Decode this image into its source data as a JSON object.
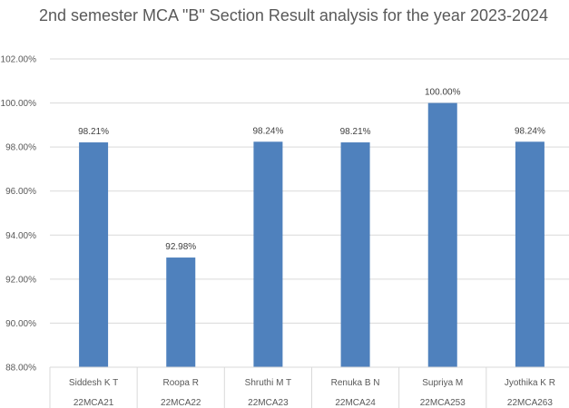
{
  "chart_data": {
    "type": "bar",
    "title": "2nd semester MCA \"B\" Section Result analysis for the year 2023-2024",
    "categories": [
      {
        "name": "Siddesh K T",
        "id": "22MCA21"
      },
      {
        "name": "Roopa R",
        "id": "22MCA22"
      },
      {
        "name": "Shruthi M T",
        "id": "22MCA23"
      },
      {
        "name": "Renuka B N",
        "id": "22MCA24"
      },
      {
        "name": "Supriya M",
        "id": "22MCA253"
      },
      {
        "name": "Jyothika K R",
        "id": "22MCA263"
      }
    ],
    "values": [
      98.21,
      92.98,
      98.24,
      98.21,
      100.0,
      98.24
    ],
    "data_labels": [
      "98.21%",
      "92.98%",
      "98.24%",
      "98.21%",
      "100.00%",
      "98.24%"
    ],
    "yticks": [
      "88.00%",
      "90.00%",
      "92.00%",
      "94.00%",
      "96.00%",
      "98.00%",
      "100.00%",
      "102.00%"
    ],
    "ylim": [
      88,
      102
    ],
    "grid": true,
    "bar_color": "#4F81BD",
    "grid_color": "#D9D9D9"
  }
}
